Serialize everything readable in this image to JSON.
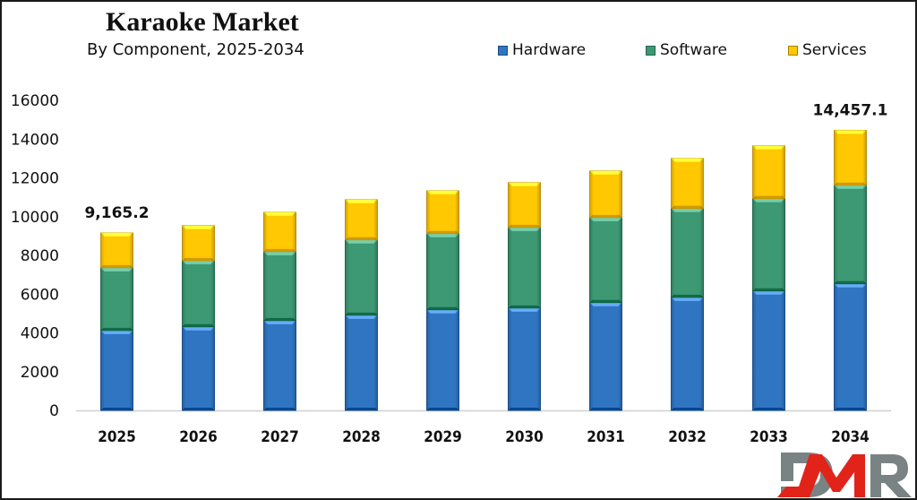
{
  "chart_data": {
    "type": "bar",
    "stacked": true,
    "title": "Karaoke Market",
    "subtitle": "By Component, 2025-2034",
    "xlabel": "",
    "ylabel": "",
    "categories": [
      "2025",
      "2026",
      "2027",
      "2028",
      "2029",
      "2030",
      "2031",
      "2032",
      "2033",
      "2034"
    ],
    "series": [
      {
        "name": "Hardware",
        "color": "#2f75c2",
        "values": [
          4120,
          4310,
          4630,
          4910,
          5190,
          5280,
          5560,
          5830,
          6160,
          6530
        ]
      },
      {
        "name": "Software",
        "color": "#3d9874",
        "values": [
          3240,
          3420,
          3560,
          3890,
          3930,
          4160,
          4390,
          4590,
          4770,
          5090
        ]
      },
      {
        "name": "Services",
        "color": "#ffc800",
        "values": [
          1805.2,
          1810,
          2040,
          2080,
          2220,
          2320,
          2410,
          2590,
          2730,
          2837.1
        ]
      }
    ],
    "ylim": [
      0,
      16000
    ],
    "yticks": [
      0,
      2000,
      4000,
      6000,
      8000,
      10000,
      12000,
      14000,
      16000
    ],
    "ytick_labels": [
      "0",
      "2000",
      "4000",
      "6000",
      "8000",
      "10000",
      "12000",
      "14000",
      "16000"
    ],
    "grid": false,
    "legend_position": "top-right",
    "annotations": [
      {
        "category": "2025",
        "text": "9,165.2",
        "value": 9165.2
      },
      {
        "category": "2034",
        "text": "14,457.1",
        "value": 14457.1
      }
    ]
  },
  "legend": {
    "items": [
      {
        "label": "Hardware",
        "color": "#2f75c2"
      },
      {
        "label": "Software",
        "color": "#3d9874"
      },
      {
        "label": "Services",
        "color": "#ffc800"
      }
    ]
  },
  "logo": {
    "text": "DMR",
    "colors": {
      "primary": "#7a8384",
      "accent": "#e2231a"
    }
  }
}
